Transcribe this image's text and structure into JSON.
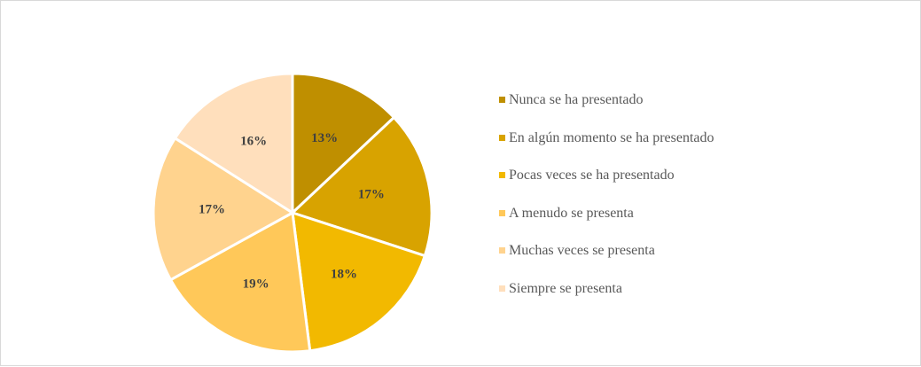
{
  "chart_data": {
    "type": "pie",
    "title": "",
    "start_angle_deg": 0,
    "direction": "clockwise",
    "legend_position": "right",
    "slices": [
      {
        "label": "Nunca se ha presentado",
        "value": 13,
        "display": "13%",
        "color": "#BF8F00"
      },
      {
        "label": "En algún momento se ha presentado",
        "value": 17,
        "display": "17%",
        "color": "#D8A300"
      },
      {
        "label": "Pocas veces se ha presentado",
        "value": 18,
        "display": "18%",
        "color": "#F2B900"
      },
      {
        "label": "A menudo se presenta",
        "value": 19,
        "display": "19%",
        "color": "#FFC859"
      },
      {
        "label": "Muchas veces se presenta",
        "value": 17,
        "display": "17%",
        "color": "#FFD38E"
      },
      {
        "label": "Siempre se presenta",
        "value": 16,
        "display": "16%",
        "color": "#FFDFBC"
      }
    ]
  }
}
